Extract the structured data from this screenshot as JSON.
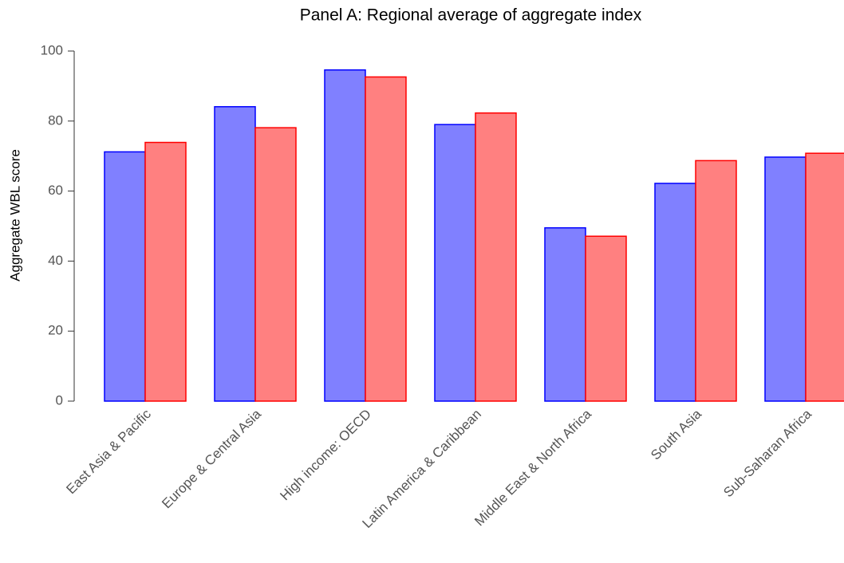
{
  "chart_data": {
    "type": "bar",
    "title": "Panel A: Regional average of aggregate index",
    "y_label": "Aggregate WBL score",
    "categories": [
      "East Asia & Pacific",
      "Europe & Central Asia",
      "High income: OECD",
      "Latin America & Caribbean",
      "Middle East & North Africa",
      "South Asia",
      "Sub-Saharan Africa"
    ],
    "series": [
      {
        "color": "#8080ff",
        "edge_color": "#0000ff",
        "values": [
          71.2,
          84.1,
          94.6,
          79.0,
          49.5,
          62.2,
          69.7
        ]
      },
      {
        "color": "#ff8080",
        "edge_color": "#ff0000",
        "values": [
          73.9,
          78.1,
          92.6,
          82.3,
          47.1,
          68.7,
          70.8
        ]
      }
    ],
    "ylim": [
      0,
      100
    ],
    "yticks": [
      0,
      20,
      40,
      60,
      80,
      100
    ],
    "grid": false
  }
}
